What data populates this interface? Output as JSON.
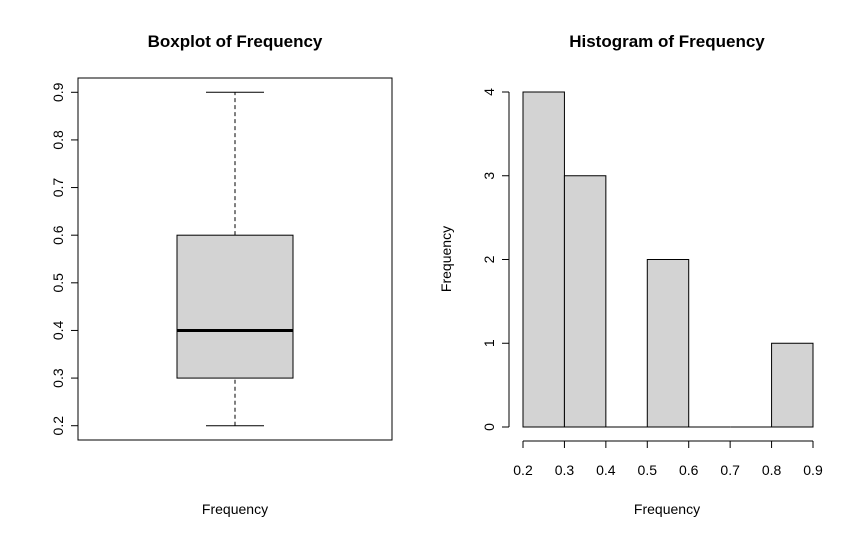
{
  "chart_data": [
    {
      "type": "boxplot",
      "title": "Boxplot of Frequency",
      "xlabel": "Frequency",
      "ylabel": "",
      "ylim": [
        0.17,
        0.93
      ],
      "y_ticks": [
        "0.2",
        "0.3",
        "0.4",
        "0.5",
        "0.6",
        "0.7",
        "0.8",
        "0.9"
      ],
      "stats": {
        "min": 0.2,
        "q1": 0.3,
        "median": 0.4,
        "q3": 0.6,
        "max": 0.9
      },
      "box_color": "#d3d3d3",
      "grid": false
    },
    {
      "type": "bar",
      "title": "Histogram of Frequency",
      "xlabel": "Frequency",
      "ylabel": "Frequency",
      "bins": [
        {
          "from": 0.2,
          "to": 0.3,
          "count": 4
        },
        {
          "from": 0.3,
          "to": 0.4,
          "count": 3
        },
        {
          "from": 0.4,
          "to": 0.5,
          "count": 0
        },
        {
          "from": 0.5,
          "to": 0.6,
          "count": 2
        },
        {
          "from": 0.6,
          "to": 0.7,
          "count": 0
        },
        {
          "from": 0.7,
          "to": 0.8,
          "count": 0
        },
        {
          "from": 0.8,
          "to": 0.9,
          "count": 1
        }
      ],
      "x_ticks": [
        "0.2",
        "0.3",
        "0.4",
        "0.5",
        "0.6",
        "0.7",
        "0.8",
        "0.9"
      ],
      "y_ticks": [
        "0",
        "1",
        "2",
        "3",
        "4"
      ],
      "xlim": [
        0.2,
        0.9
      ],
      "ylim": [
        0,
        4
      ],
      "bar_color": "#d3d3d3",
      "grid": false
    }
  ]
}
